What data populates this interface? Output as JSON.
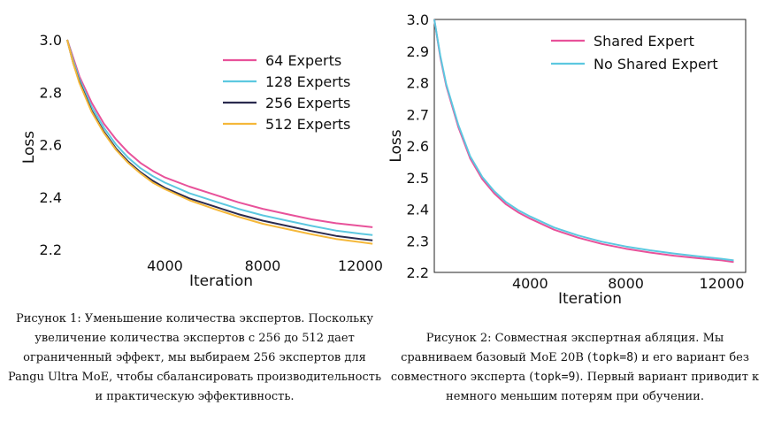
{
  "chart_data": [
    {
      "type": "line",
      "xlabel": "Iteration",
      "ylabel": "Loss",
      "xlim": [
        0,
        12600
      ],
      "ylim": [
        2.18,
        3.0
      ],
      "xticks": [
        4000,
        8000,
        12000
      ],
      "yticks": [
        2.2,
        2.4,
        2.6,
        2.8,
        3.0
      ],
      "grid": false,
      "legend_position": "top-right",
      "x": [
        0,
        250,
        500,
        1000,
        1500,
        2000,
        2500,
        3000,
        3500,
        4000,
        5000,
        6000,
        7000,
        8000,
        9000,
        10000,
        11000,
        12000,
        12500
      ],
      "series": [
        {
          "name": "64 Experts",
          "color": "#e8529a",
          "values": [
            3.0,
            2.93,
            2.86,
            2.76,
            2.68,
            2.62,
            2.57,
            2.53,
            2.5,
            2.475,
            2.44,
            2.41,
            2.38,
            2.355,
            2.335,
            2.315,
            2.3,
            2.29,
            2.285
          ]
        },
        {
          "name": "128 Experts",
          "color": "#5cc8e0",
          "values": [
            3.0,
            2.92,
            2.85,
            2.745,
            2.665,
            2.6,
            2.55,
            2.51,
            2.48,
            2.455,
            2.415,
            2.385,
            2.355,
            2.33,
            2.31,
            2.29,
            2.272,
            2.26,
            2.255
          ]
        },
        {
          "name": "256 Experts",
          "color": "#2a2a4e",
          "values": [
            3.0,
            2.91,
            2.84,
            2.73,
            2.65,
            2.585,
            2.535,
            2.495,
            2.462,
            2.435,
            2.395,
            2.365,
            2.335,
            2.31,
            2.29,
            2.27,
            2.252,
            2.24,
            2.235
          ]
        },
        {
          "name": "512 Experts",
          "color": "#f5b83a",
          "values": [
            3.0,
            2.91,
            2.835,
            2.725,
            2.645,
            2.58,
            2.53,
            2.49,
            2.455,
            2.43,
            2.388,
            2.355,
            2.325,
            2.298,
            2.278,
            2.258,
            2.24,
            2.228,
            2.222
          ]
        }
      ]
    },
    {
      "type": "line",
      "xlabel": "Iteration",
      "ylabel": "Loss",
      "xlim": [
        0,
        13000
      ],
      "ylim": [
        2.2,
        3.0
      ],
      "xticks": [
        4000,
        8000,
        12000
      ],
      "yticks": [
        2.2,
        2.3,
        2.4,
        2.5,
        2.6,
        2.7,
        2.8,
        2.9,
        3.0
      ],
      "grid": false,
      "legend_position": "top-right",
      "x": [
        0,
        250,
        500,
        1000,
        1500,
        2000,
        2500,
        3000,
        3500,
        4000,
        5000,
        6000,
        7000,
        8000,
        9000,
        10000,
        11000,
        12000,
        12500
      ],
      "series": [
        {
          "name": "Shared Expert",
          "color": "#e8529a",
          "values": [
            3.0,
            2.88,
            2.79,
            2.66,
            2.56,
            2.495,
            2.45,
            2.415,
            2.39,
            2.37,
            2.335,
            2.31,
            2.29,
            2.275,
            2.263,
            2.253,
            2.245,
            2.238,
            2.233
          ]
        },
        {
          "name": "No Shared Expert",
          "color": "#5cc8e0",
          "values": [
            3.0,
            2.885,
            2.795,
            2.667,
            2.567,
            2.502,
            2.457,
            2.422,
            2.397,
            2.377,
            2.342,
            2.317,
            2.297,
            2.282,
            2.27,
            2.26,
            2.251,
            2.243,
            2.238
          ]
        }
      ]
    }
  ],
  "captions": {
    "fig1": "Рисунок 1: Уменьшение количества экспертов. Поскольку увеличение количества экспертов с 256 до 512 дает ограниченный эффект, мы выбираем 256 экспертов для Pangu Ultra MoE, чтобы сбалансировать производительность и практическую эффективность.",
    "fig2_a": "Рисунок 2: Совместная экспертная абляция. Мы сравниваем базовый MoE 20B (",
    "fig2_code1": "topk=8",
    "fig2_b": ") и его вариант без совместного эксперта (",
    "fig2_code2": "topk=9",
    "fig2_c": "). Первый вариант приводит к немного меньшим потерям при обучении."
  }
}
